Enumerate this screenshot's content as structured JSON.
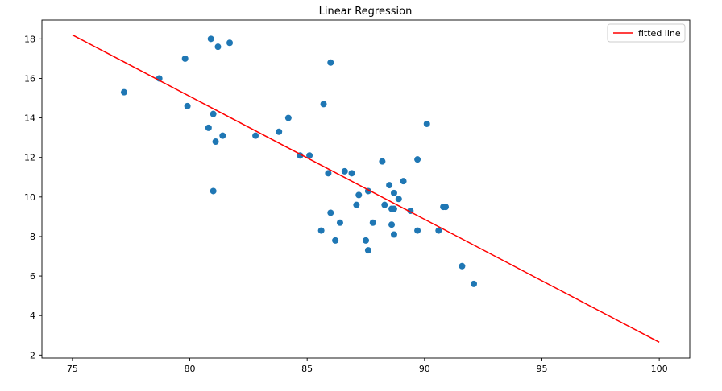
{
  "chart_data": {
    "type": "scatter",
    "title": "Linear Regression",
    "xlabel": "",
    "ylabel": "",
    "xlim": [
      73.7,
      101.3
    ],
    "ylim": [
      1.85,
      18.95
    ],
    "xticks": [
      75,
      80,
      85,
      90,
      95,
      100
    ],
    "yticks": [
      2,
      4,
      6,
      8,
      10,
      12,
      14,
      16,
      18
    ],
    "grid": false,
    "legend_position": "top-right",
    "colors": {
      "points": "#1f77b4",
      "fitted_line": "#ff0000"
    },
    "legend": [
      {
        "label": "fitted line",
        "color": "#ff0000",
        "type": "line"
      }
    ],
    "series": [
      {
        "type": "scatter",
        "points": [
          [
            77.2,
            15.3
          ],
          [
            78.7,
            16.0
          ],
          [
            79.8,
            17.0
          ],
          [
            79.9,
            14.6
          ],
          [
            80.8,
            13.5
          ],
          [
            80.9,
            18.0
          ],
          [
            81.0,
            14.2
          ],
          [
            81.0,
            10.3
          ],
          [
            81.1,
            12.8
          ],
          [
            81.2,
            17.6
          ],
          [
            81.4,
            13.1
          ],
          [
            81.7,
            17.8
          ],
          [
            82.8,
            13.1
          ],
          [
            83.8,
            13.3
          ],
          [
            84.2,
            14.0
          ],
          [
            84.7,
            12.1
          ],
          [
            85.1,
            12.1
          ],
          [
            85.6,
            8.3
          ],
          [
            85.7,
            14.7
          ],
          [
            85.9,
            11.2
          ],
          [
            86.0,
            16.8
          ],
          [
            86.0,
            9.2
          ],
          [
            86.2,
            7.8
          ],
          [
            86.4,
            8.7
          ],
          [
            86.6,
            11.3
          ],
          [
            86.9,
            11.2
          ],
          [
            87.1,
            9.6
          ],
          [
            87.2,
            10.1
          ],
          [
            87.5,
            7.8
          ],
          [
            87.6,
            10.3
          ],
          [
            87.6,
            7.3
          ],
          [
            87.8,
            8.7
          ],
          [
            88.2,
            11.8
          ],
          [
            88.3,
            9.6
          ],
          [
            88.5,
            10.6
          ],
          [
            88.6,
            9.4
          ],
          [
            88.6,
            8.6
          ],
          [
            88.7,
            9.4
          ],
          [
            88.7,
            10.2
          ],
          [
            88.7,
            8.1
          ],
          [
            88.9,
            9.9
          ],
          [
            89.1,
            10.8
          ],
          [
            89.4,
            9.3
          ],
          [
            89.7,
            11.9
          ],
          [
            89.7,
            8.3
          ],
          [
            90.1,
            13.7
          ],
          [
            90.6,
            8.3
          ],
          [
            90.8,
            9.5
          ],
          [
            90.9,
            9.5
          ],
          [
            91.6,
            6.5
          ],
          [
            92.1,
            5.6
          ]
        ]
      },
      {
        "name": "fitted line",
        "type": "line",
        "points": [
          [
            75,
            18.2
          ],
          [
            100,
            2.65
          ]
        ]
      }
    ]
  }
}
